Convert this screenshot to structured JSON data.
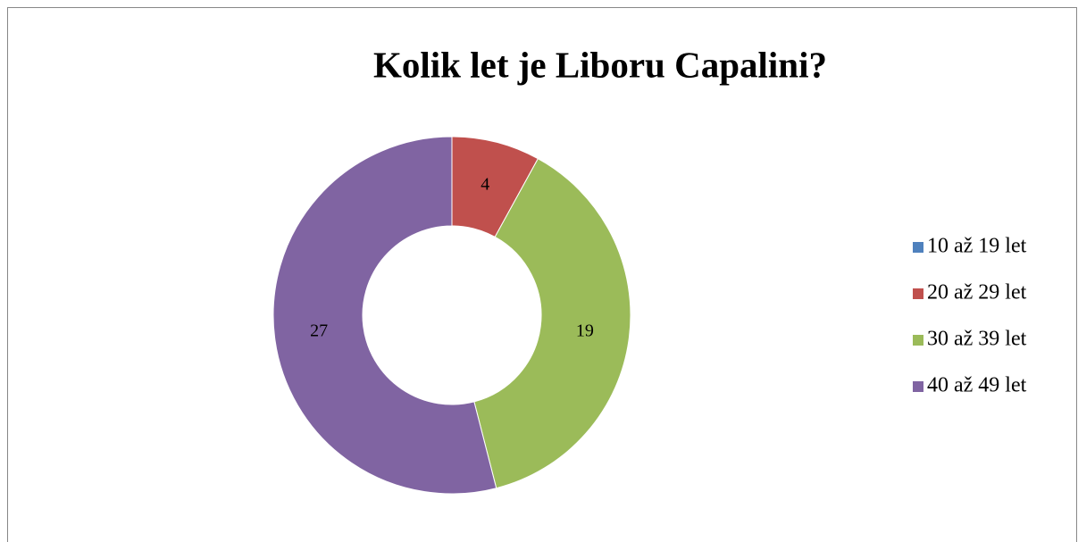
{
  "chart_data": {
    "type": "donut",
    "title": "Kolik let je Liboru Capalini?",
    "categories": [
      "10 až 19 let",
      "20 až 29 let",
      "30 až 39 let",
      "40 až 49 let"
    ],
    "values": [
      0,
      4,
      19,
      27
    ],
    "colors": [
      "#4f81bd",
      "#c0504d",
      "#9bbb59",
      "#8064a2"
    ],
    "legend": "right"
  }
}
